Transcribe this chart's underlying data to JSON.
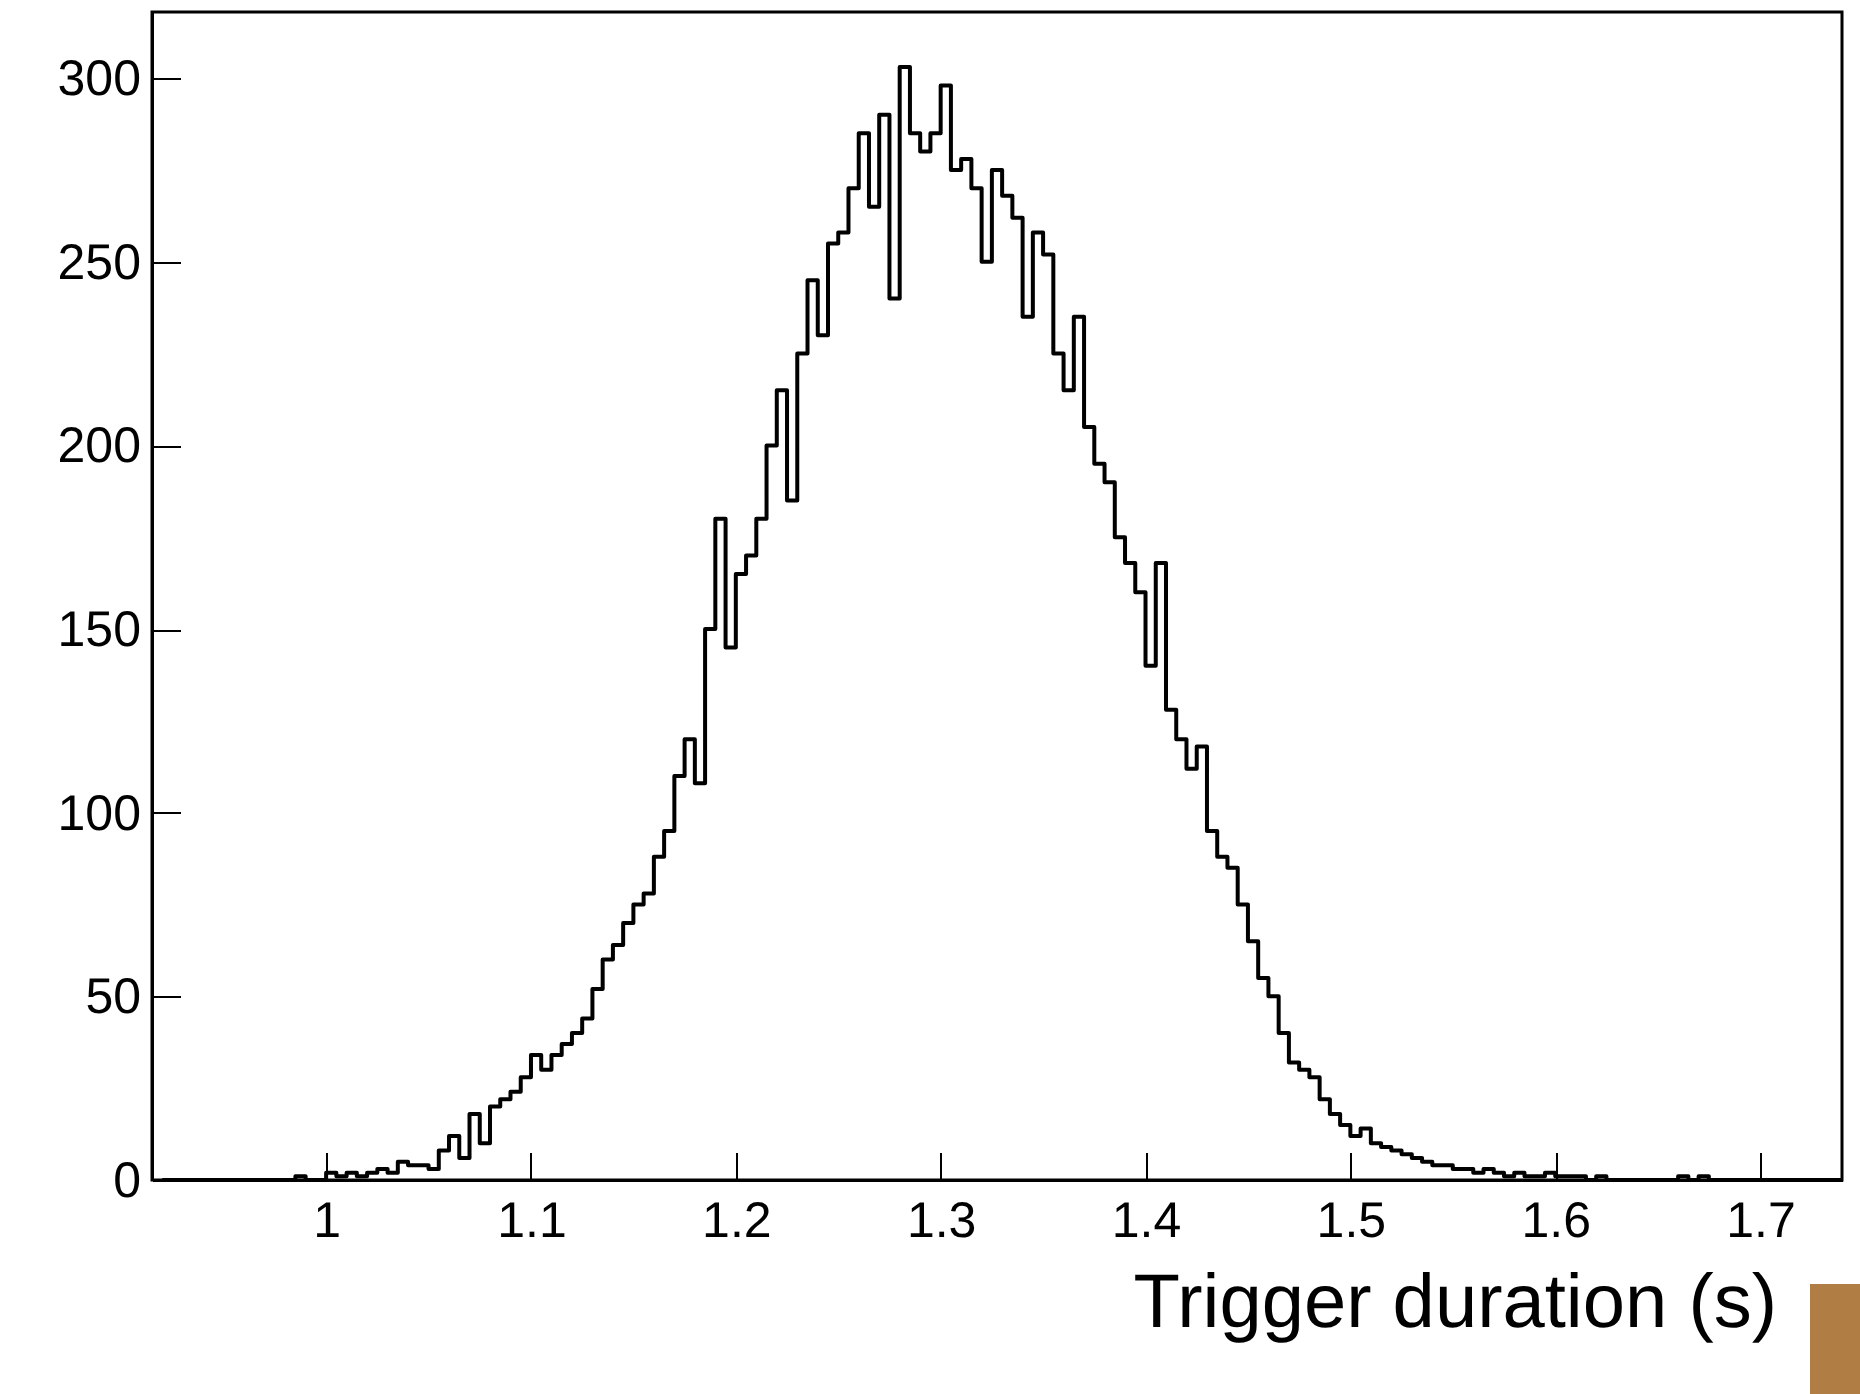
{
  "chart_data": {
    "type": "histogram",
    "xlabel": "Trigger duration (s)",
    "bins": [
      0.92,
      0.925,
      0.93,
      0.935,
      0.94,
      0.945,
      0.95,
      0.955,
      0.96,
      0.965,
      0.97,
      0.975,
      0.98,
      0.985,
      0.99,
      0.995,
      1.0,
      1.005,
      1.01,
      1.015,
      1.02,
      1.025,
      1.03,
      1.035,
      1.04,
      1.045,
      1.05,
      1.055,
      1.06,
      1.065,
      1.07,
      1.075,
      1.08,
      1.085,
      1.09,
      1.095,
      1.1,
      1.105,
      1.11,
      1.115,
      1.12,
      1.125,
      1.13,
      1.135,
      1.14,
      1.145,
      1.15,
      1.155,
      1.16,
      1.165,
      1.17,
      1.175,
      1.18,
      1.185,
      1.19,
      1.195,
      1.2,
      1.205,
      1.21,
      1.215,
      1.22,
      1.225,
      1.23,
      1.235,
      1.24,
      1.245,
      1.25,
      1.255,
      1.26,
      1.265,
      1.27,
      1.275,
      1.28,
      1.285,
      1.29,
      1.295,
      1.3,
      1.305,
      1.31,
      1.315,
      1.32,
      1.325,
      1.33,
      1.335,
      1.34,
      1.345,
      1.35,
      1.355,
      1.36,
      1.365,
      1.37,
      1.375,
      1.38,
      1.385,
      1.39,
      1.395,
      1.4,
      1.405,
      1.41,
      1.415,
      1.42,
      1.425,
      1.43,
      1.435,
      1.44,
      1.445,
      1.45,
      1.455,
      1.46,
      1.465,
      1.47,
      1.475,
      1.48,
      1.485,
      1.49,
      1.495,
      1.5,
      1.505,
      1.51,
      1.515,
      1.52,
      1.525,
      1.53,
      1.535,
      1.54,
      1.545,
      1.55,
      1.555,
      1.56,
      1.565,
      1.57,
      1.575,
      1.58,
      1.585,
      1.59,
      1.595,
      1.6,
      1.605,
      1.61,
      1.615,
      1.62,
      1.625,
      1.63,
      1.635,
      1.64,
      1.645,
      1.65,
      1.655,
      1.66,
      1.665,
      1.67,
      1.675,
      1.68,
      1.685,
      1.69,
      1.695,
      1.7,
      1.705,
      1.71,
      1.715,
      1.72,
      1.725,
      1.73,
      1.735,
      1.74
    ],
    "values": [
      0,
      0,
      0,
      0,
      0,
      0,
      0,
      0,
      0,
      0,
      0,
      0,
      0,
      1,
      0,
      0,
      2,
      1,
      2,
      1,
      2,
      3,
      2,
      5,
      4,
      4,
      3,
      8,
      12,
      6,
      18,
      10,
      20,
      22,
      24,
      28,
      34,
      30,
      34,
      37,
      40,
      44,
      52,
      60,
      64,
      70,
      75,
      78,
      88,
      95,
      110,
      120,
      108,
      150,
      180,
      145,
      165,
      170,
      180,
      200,
      215,
      185,
      225,
      245,
      230,
      255,
      258,
      270,
      285,
      265,
      290,
      240,
      303,
      285,
      280,
      285,
      298,
      275,
      278,
      270,
      250,
      275,
      268,
      262,
      235,
      258,
      252,
      225,
      215,
      235,
      205,
      195,
      190,
      175,
      168,
      160,
      140,
      168,
      128,
      120,
      112,
      118,
      95,
      88,
      85,
      75,
      65,
      55,
      50,
      40,
      32,
      30,
      28,
      22,
      18,
      15,
      12,
      14,
      10,
      9,
      8,
      7,
      6,
      5,
      4,
      4,
      3,
      3,
      2,
      3,
      2,
      1,
      2,
      1,
      1,
      2,
      1,
      1,
      1,
      0,
      1,
      0,
      0,
      0,
      0,
      0,
      0,
      0,
      1,
      0,
      1,
      0,
      0,
      0,
      0,
      0,
      0,
      0,
      0,
      0,
      0,
      0,
      0,
      0
    ],
    "color": "#000000",
    "xlim": [
      0.915,
      1.74
    ],
    "xticks": [
      1,
      1.1,
      1.2,
      1.3,
      1.4,
      1.5,
      1.6,
      1.7
    ],
    "ylim": [
      0,
      318
    ],
    "yticks": [
      0,
      50,
      100,
      150,
      200,
      250,
      300
    ],
    "grid": false
  }
}
